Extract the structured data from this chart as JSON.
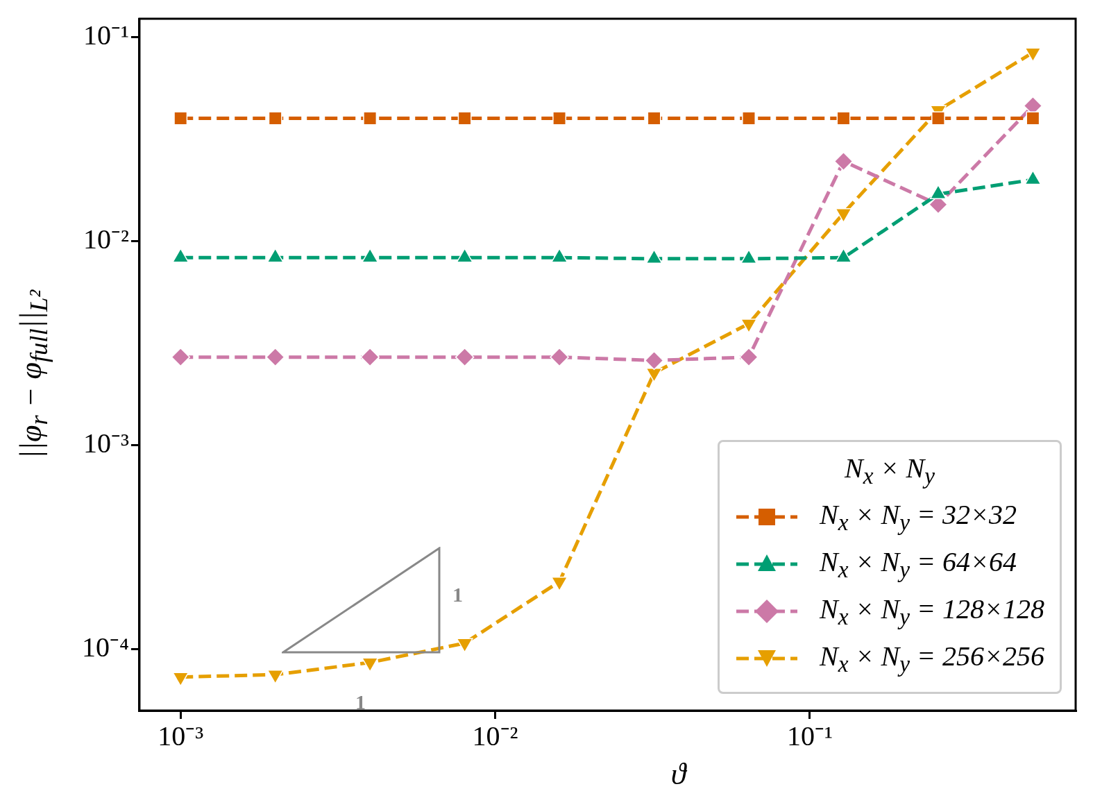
{
  "chart_data": {
    "type": "line",
    "xlabel": "ϑ",
    "ylabel": "||φ$_{r}$ − φ$_{full}$||$_{L²}$",
    "legend_title": "N$_{x}$ × N$_{y}$",
    "legend": "bottom right",
    "log": "xy",
    "line_style": "dashed",
    "grid": false,
    "x": [
      0.001,
      0.002,
      0.004,
      0.008,
      0.016,
      0.032,
      0.064,
      0.128,
      0.256,
      0.512
    ],
    "xlim": [
      0.00074,
      0.7
    ],
    "ylim": [
      5e-05,
      0.123
    ],
    "xticks": [
      {
        "value": 0.001,
        "label": "10⁻³"
      },
      {
        "value": 0.01,
        "label": "10⁻²"
      },
      {
        "value": 0.1,
        "label": "10⁻¹"
      }
    ],
    "yticks": [
      {
        "value": 0.0001,
        "label": "10⁻⁴"
      },
      {
        "value": 0.001,
        "label": "10⁻³"
      },
      {
        "value": 0.01,
        "label": "10⁻²"
      },
      {
        "value": 0.1,
        "label": "10⁻¹"
      }
    ],
    "series": [
      {
        "name": "N$_{x}$ × N$_{y}$ = 32×32",
        "color": "#d55e00",
        "marker": "square",
        "values": [
          0.04,
          0.04,
          0.04,
          0.04,
          0.04,
          0.04,
          0.04,
          0.04,
          0.04,
          0.04
        ]
      },
      {
        "name": "N$_{x}$ × N$_{y}$ = 64×64",
        "color": "#009e73",
        "marker": "triangle",
        "values": [
          0.0083,
          0.0083,
          0.0083,
          0.0083,
          0.0083,
          0.0082,
          0.0082,
          0.0083,
          0.017,
          0.02
        ]
      },
      {
        "name": "N$_{x}$ × N$_{y}$ = 128×128",
        "color": "#cc79a7",
        "marker": "diamond",
        "values": [
          0.0027,
          0.0027,
          0.0027,
          0.0027,
          0.0027,
          0.0026,
          0.0027,
          0.0246,
          0.0151,
          0.046
        ]
      },
      {
        "name": "N$_{x}$ × N$_{y}$ = 256×256",
        "color": "#e69f00",
        "marker": "triangle_down",
        "values": [
          7.3e-05,
          7.5e-05,
          8.6e-05,
          0.000107,
          0.000214,
          0.00226,
          0.00394,
          0.0137,
          0.0438,
          0.084
        ]
      }
    ],
    "annotations": [
      "1",
      "1"
    ]
  }
}
